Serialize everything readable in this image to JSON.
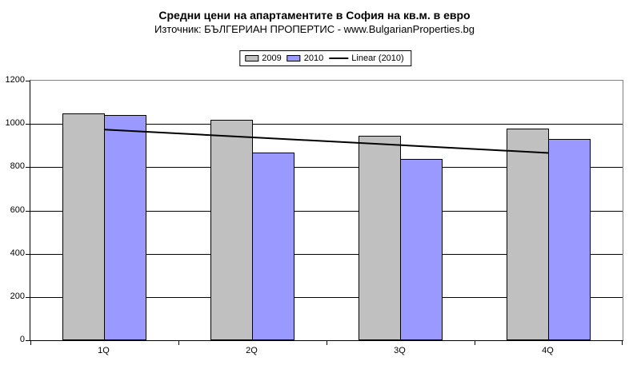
{
  "chart_data": {
    "type": "bar",
    "title": "Средни цени на апартаментите в София на кв.м. в евро",
    "subtitle": "Източник: БЪЛГЕРИАН ПРОПЕРТИС - www.BulgarianProperties.bg",
    "categories": [
      "1Q",
      "2Q",
      "3Q",
      "4Q"
    ],
    "series": [
      {
        "name": "2009",
        "color": "#c0c0c0",
        "values": [
          1050,
          1020,
          945,
          978
        ]
      },
      {
        "name": "2010",
        "color": "#9999ff",
        "values": [
          1040,
          868,
          838,
          930
        ]
      }
    ],
    "trendline": {
      "label": "Linear (2010)",
      "applies_to": "2010",
      "color": "#000000",
      "start_value": 974,
      "end_value": 866
    },
    "xlabel": "",
    "ylabel": "",
    "ylim": [
      0,
      1200
    ],
    "ytick_step": 200,
    "grid": true,
    "legend_position": "top",
    "bar_border_color": "#000000",
    "plot_border_color": "#808080",
    "axis_color": "#000000",
    "background_color": "#ffffff"
  }
}
